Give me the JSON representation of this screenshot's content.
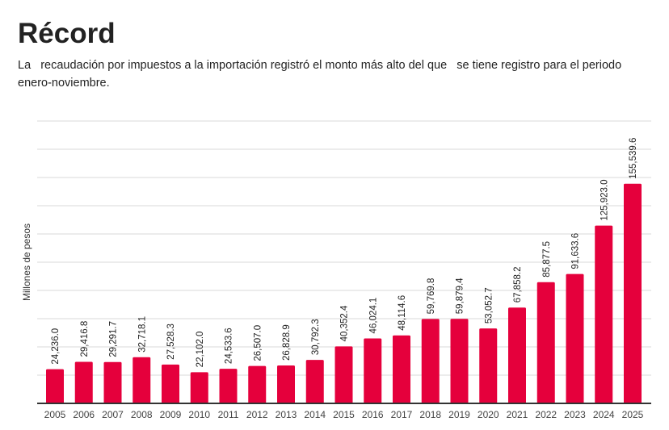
{
  "chart_data": {
    "type": "bar",
    "title": "Récord",
    "subtitle": "La   recaudación por impuestos a la importación registró el monto más alto del que   se tiene registro para el periodo enero-noviembre.",
    "xlabel": "",
    "ylabel": "Millones de pesos",
    "ylim": [
      0,
      200000
    ],
    "grid": true,
    "gridStep": 20000,
    "color": "#e5003c",
    "categories": [
      "2005",
      "2006",
      "2007",
      "2008",
      "2009",
      "2010",
      "2011",
      "2012",
      "2013",
      "2014",
      "2015",
      "2016",
      "2017",
      "2018",
      "2019",
      "2020",
      "2021",
      "2022",
      "2023",
      "2024",
      "2025"
    ],
    "values": [
      24236.0,
      29416.8,
      29291.7,
      32718.1,
      27528.3,
      22102.0,
      24533.6,
      26507.0,
      26828.9,
      30792.3,
      40352.4,
      46024.1,
      48114.6,
      59769.8,
      59879.4,
      53052.7,
      67858.2,
      85877.5,
      91633.6,
      125923.0,
      155539.6
    ],
    "labels": [
      "24,236.0",
      "29,416.8",
      "29,291.7",
      "32,718.1",
      "27,528.3",
      "22,102.0",
      "24,533.6",
      "26,507.0",
      "26,828.9",
      "30,792.3",
      "40,352.4",
      "46,024.1",
      "48,114.6",
      "59,769.8",
      "59,879.4",
      "53,052.7",
      "67,858.2",
      "85,877.5",
      "91,633.6",
      "125,923.0",
      "155,539.6"
    ]
  }
}
